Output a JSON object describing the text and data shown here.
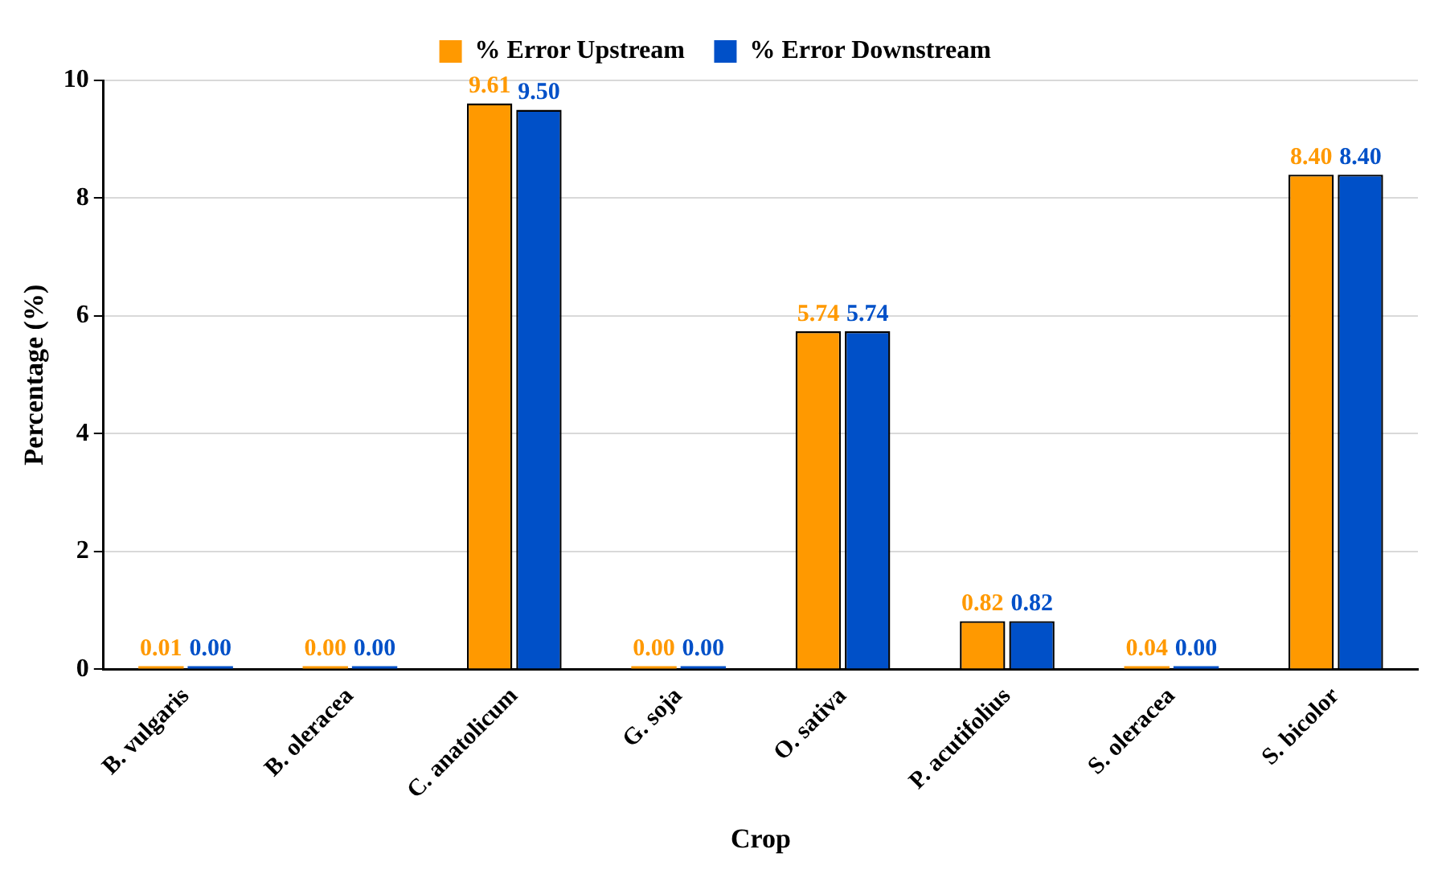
{
  "chart_data": {
    "type": "bar",
    "xlabel": "Crop",
    "ylabel": "Percentage (%)",
    "categories": [
      "B. vulgaris",
      "B. oleracea",
      "C. anatolicum",
      "G. soja",
      "O. sativa",
      "P. acutifolius",
      "S. oleracea",
      "S. bicolor"
    ],
    "series": [
      {
        "name": "% Error Upstream",
        "color": "#ff9900",
        "values": [
          0.01,
          0.0,
          9.61,
          0.0,
          5.74,
          0.82,
          0.04,
          8.4
        ],
        "value_labels": [
          "0.01",
          "0.00",
          "9.61",
          "0.00",
          "5.74",
          "0.82",
          "0.04",
          "8.40"
        ]
      },
      {
        "name": "% Error Downstream",
        "color": "#0050c8",
        "values": [
          0.0,
          0.0,
          9.5,
          0.0,
          5.74,
          0.82,
          0.0,
          8.4
        ],
        "value_labels": [
          "0.00",
          "0.00",
          "9.50",
          "0.00",
          "5.74",
          "0.82",
          "0.00",
          "8.40"
        ]
      }
    ],
    "ylim": [
      0,
      10
    ],
    "yticks": [
      0,
      2,
      4,
      6,
      8,
      10
    ],
    "grid": "y",
    "legend": "top"
  }
}
